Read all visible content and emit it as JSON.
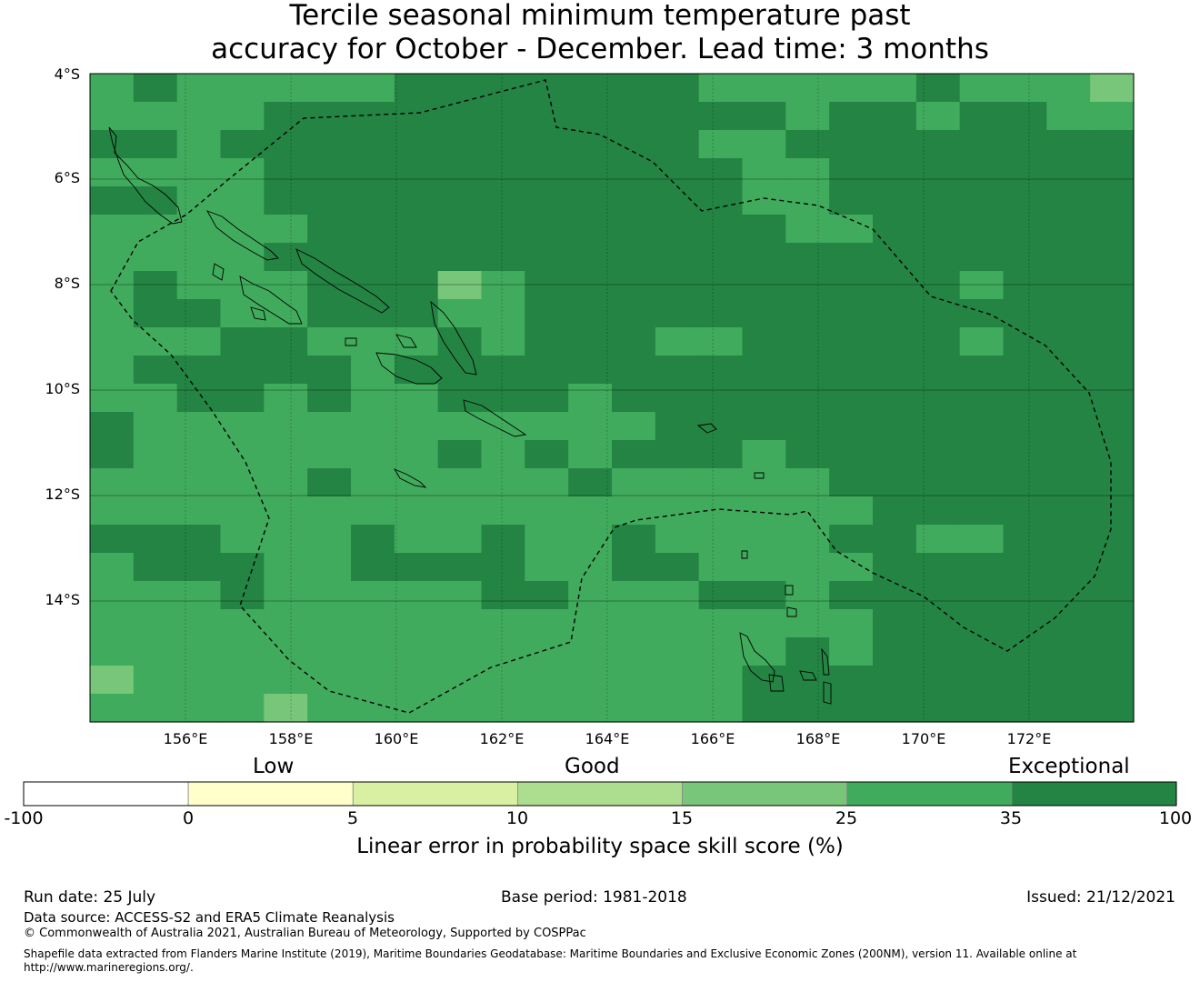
{
  "title_line1": "Tercile seasonal minimum temperature past",
  "title_line2": "accuracy for October - December. Lead time: 3 months",
  "map": {
    "lon_range": [
      154.2,
      174.2
    ],
    "lat_range": [
      -4.0,
      -16.3
    ],
    "lat_ticks": [
      "4°S",
      "6°S",
      "8°S",
      "10°S",
      "12°S",
      "14°S"
    ],
    "lon_ticks": [
      "156°E",
      "158°E",
      "160°E",
      "162°E",
      "164°E",
      "166°E",
      "168°E",
      "170°E",
      "172°E"
    ],
    "gridlines": true,
    "eez_boundary": "dashed",
    "grid_cells": [
      "0000000000000000000000001110000000000000000000000000000000000000000000000000000000000000000000000000",
      "1111112222111111222222222222222222222111111111111111112222222222222222221111111111112222222222222222",
      "1111112222111111222222222222222222222111111111111111112222222222222222221111111111112222222222222222",
      "0000000000000000000000000000000000000000000000000000000000000000000000000000000000000000000000000000"
    ],
    "legend_scale": [
      "-100",
      "0",
      "5",
      "10",
      "15",
      "25",
      "35",
      "100"
    ]
  },
  "colorbar": {
    "category_low": "Low",
    "category_good": "Good",
    "category_exceptional": "Exceptional",
    "bins": [
      {
        "color": "#ffffff"
      },
      {
        "color": "#ffffcc"
      },
      {
        "color": "#d9f0a3"
      },
      {
        "color": "#addd8e"
      },
      {
        "color": "#78c679"
      },
      {
        "color": "#41ab5d"
      },
      {
        "color": "#238443"
      }
    ],
    "ticks": [
      "-100",
      "0",
      "5",
      "10",
      "15",
      "25",
      "35",
      "100"
    ],
    "label": "Linear error in probability space skill score (%)"
  },
  "footer": {
    "run_date": "Run date: 25 July",
    "base_period": "Base period: 1981-2018",
    "issued": "Issued: 21/12/2021",
    "data_source": "Data source: ACCESS-S2 and ERA5 Climate Reanalysis",
    "copyright": "© Commonwealth of Australia 2021, Australian Bureau of Meteorology, Supported by COSPPac",
    "shapefile_line1": "Shapefile data extracted from Flanders Marine Institute (2019), Maritime Boundaries Geodatabase: Maritime Boundaries and Exclusive Economic Zones (200NM), version 11. Available online at",
    "shapefile_line2": "http://www.marineregions.org/."
  }
}
